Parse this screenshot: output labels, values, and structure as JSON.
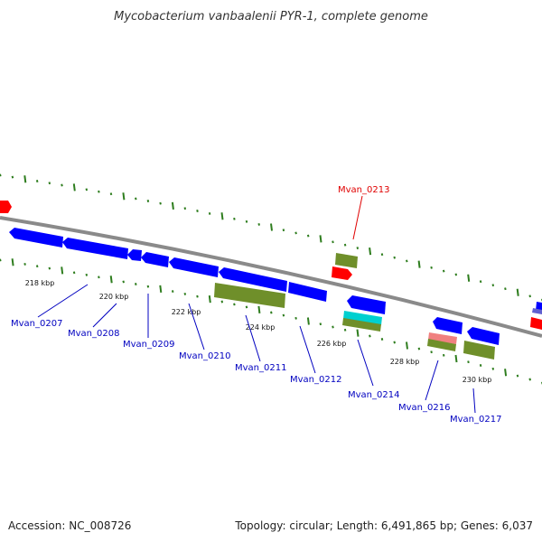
{
  "title": "Mycobacterium vanbaalenii PYR-1, complete genome",
  "footer": {
    "accession": "Accession: NC_008726",
    "summary": "Topology: circular; Length: 6,491,865 bp; Genes: 6,037"
  },
  "colors": {
    "backbone": "#7f7f7f",
    "tick_green": "#2e7d1e",
    "gene_label_blue": "#0000c0",
    "gene_label_red": "#e00000",
    "cds_blue": "#0000ff",
    "rna_red": "#ff0000",
    "olive": "#6f8f2a",
    "cyan": "#00d0d0",
    "pink": "#f08080"
  },
  "scale_labels": [
    "218 kbp",
    "220 kbp",
    "222 kbp",
    "224 kbp",
    "226 kbp",
    "228 kbp",
    "230 kbp"
  ],
  "gene_labels": [
    {
      "name": "Mvan_0207",
      "color": "blue"
    },
    {
      "name": "Mvan_0208",
      "color": "blue"
    },
    {
      "name": "Mvan_0209",
      "color": "blue"
    },
    {
      "name": "Mvan_0210",
      "color": "blue"
    },
    {
      "name": "Mvan_0211",
      "color": "blue"
    },
    {
      "name": "Mvan_0212",
      "color": "blue"
    },
    {
      "name": "Mvan_0213",
      "color": "red"
    },
    {
      "name": "Mvan_0214",
      "color": "blue"
    },
    {
      "name": "Mvan_0216",
      "color": "blue"
    },
    {
      "name": "Mvan_0217",
      "color": "blue"
    }
  ]
}
